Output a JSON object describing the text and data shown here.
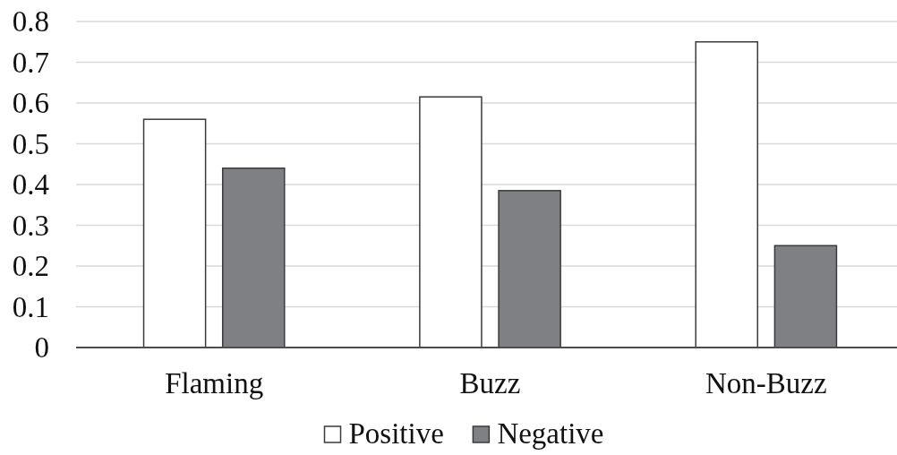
{
  "chart_data": {
    "type": "bar",
    "categories": [
      "Flaming",
      "Buzz",
      "Non-Buzz"
    ],
    "series": [
      {
        "name": "Positive",
        "color": "#ffffff",
        "values": [
          0.56,
          0.615,
          0.75
        ]
      },
      {
        "name": "Negative",
        "color": "#7f8084",
        "values": [
          0.44,
          0.385,
          0.25
        ]
      }
    ],
    "ylim": [
      0,
      0.8
    ],
    "yticks": [
      0,
      0.1,
      0.2,
      0.3,
      0.4,
      0.5,
      0.6,
      0.7,
      0.8
    ],
    "grid": "y",
    "legend": "bottom"
  }
}
